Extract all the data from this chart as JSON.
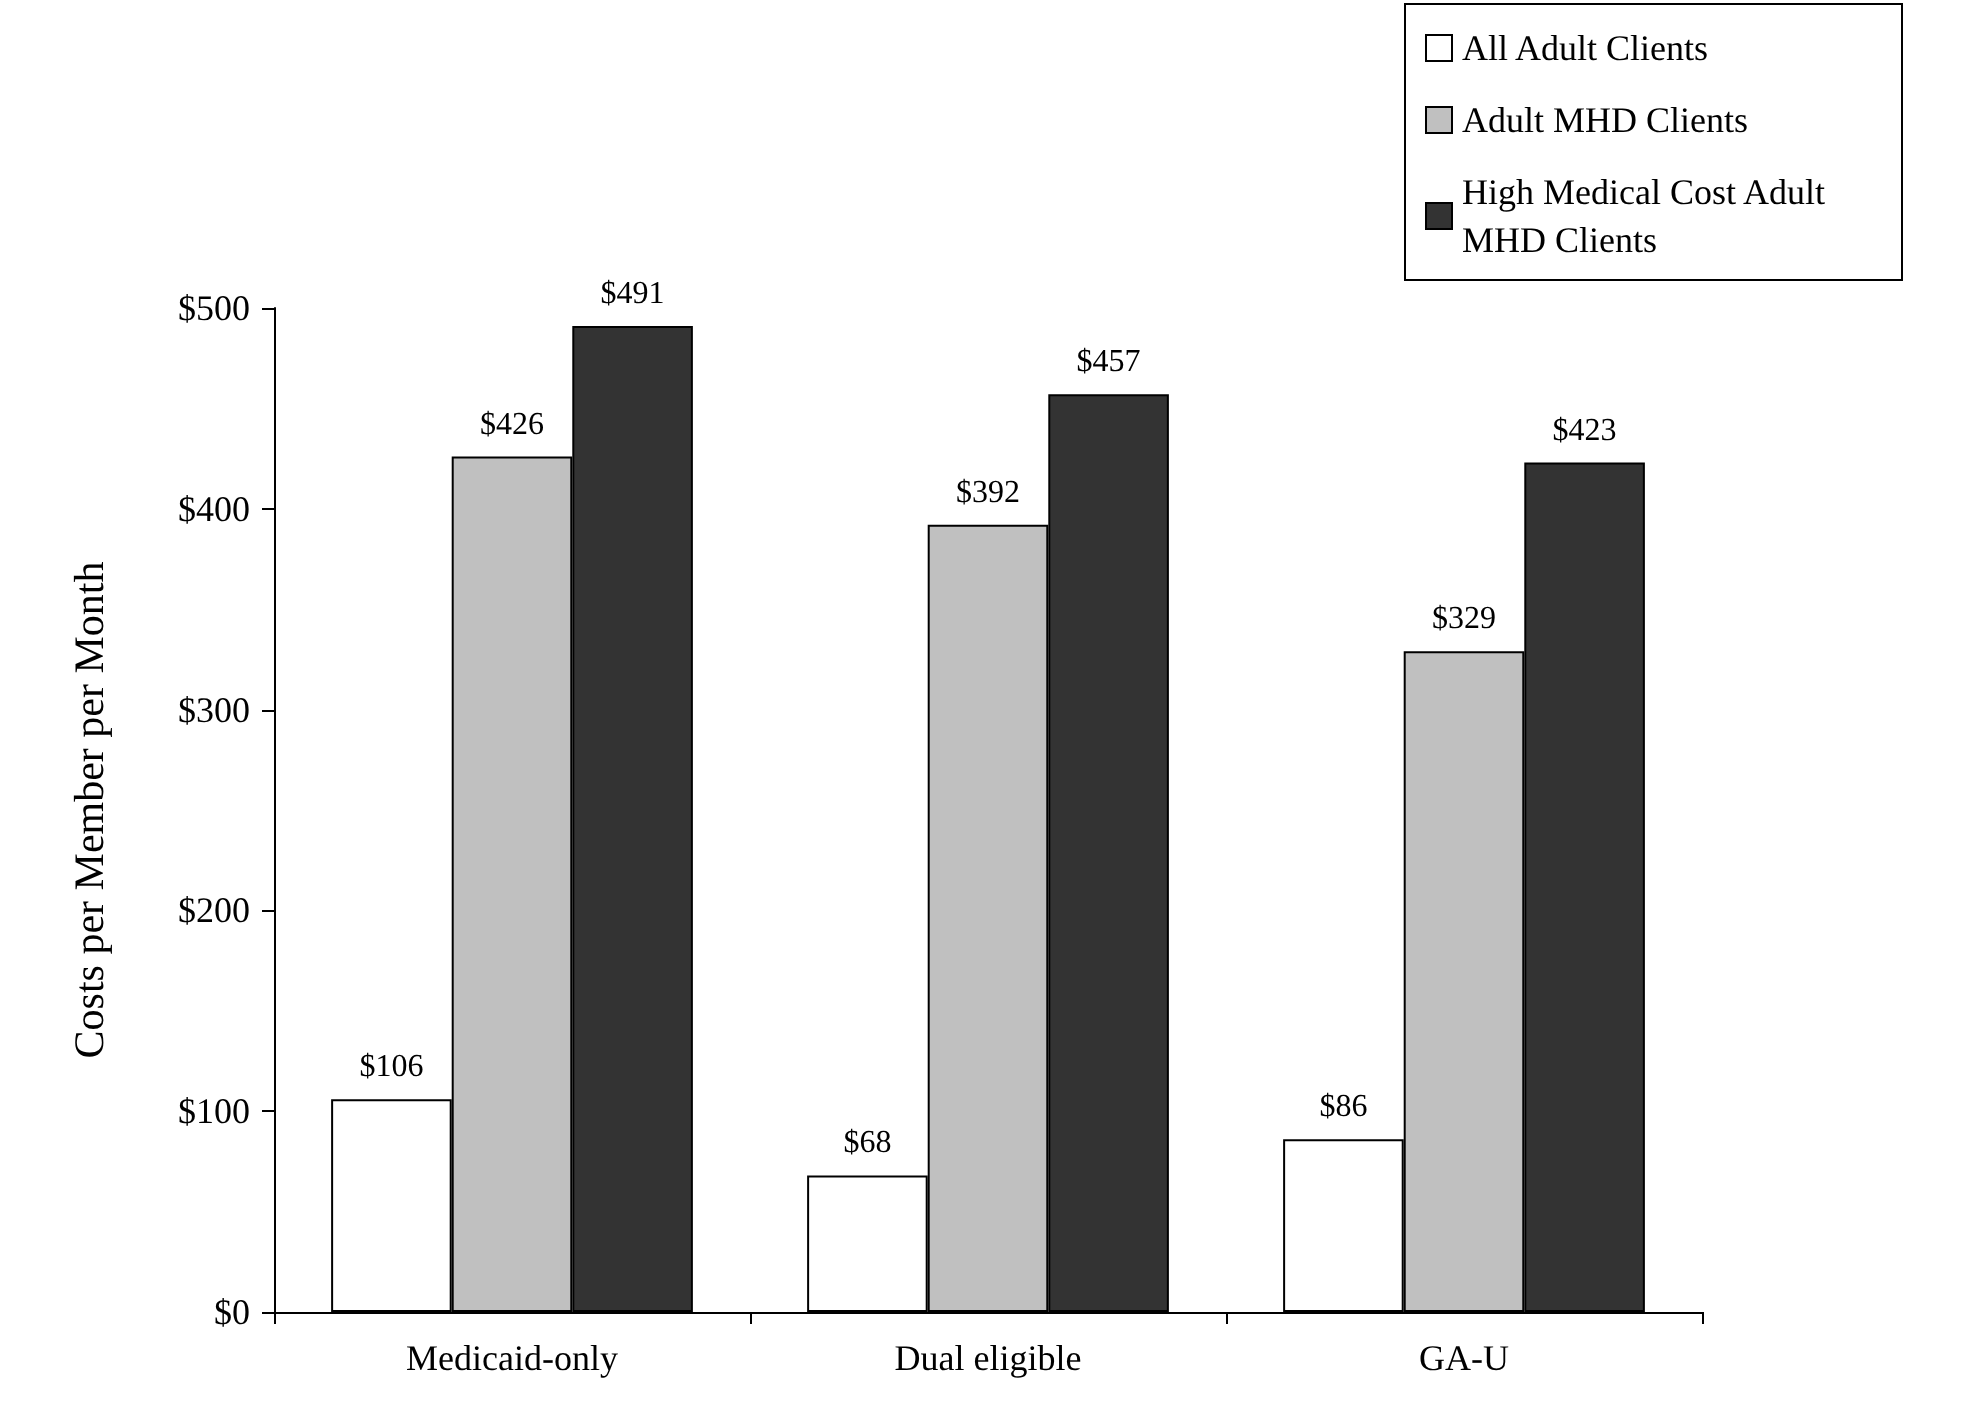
{
  "chart_data": {
    "type": "bar",
    "ylabel": "Costs per Member per Month",
    "categories": [
      "Medicaid-only",
      "Dual eligible",
      "GA-U"
    ],
    "series": [
      {
        "name": "All Adult Clients",
        "color": "#ffffff",
        "values": [
          106,
          68,
          86
        ],
        "value_labels": [
          "$106",
          "$68",
          "$86"
        ]
      },
      {
        "name": "Adult MHD Clients",
        "color": "#c0c0c0",
        "values": [
          426,
          392,
          329
        ],
        "value_labels": [
          "$426",
          "$392",
          "$329"
        ]
      },
      {
        "name": "High Medical Cost Adult MHD Clients",
        "color": "#333333",
        "values": [
          491,
          457,
          423
        ],
        "value_labels": [
          "$491",
          "$457",
          "$423"
        ]
      }
    ],
    "ylim": [
      0,
      500
    ],
    "yticks": [
      {
        "value": 0,
        "label": "$0"
      },
      {
        "value": 100,
        "label": "$100"
      },
      {
        "value": 200,
        "label": "$200"
      },
      {
        "value": 300,
        "label": "$300"
      },
      {
        "value": 400,
        "label": "$400"
      },
      {
        "value": 500,
        "label": "$500"
      }
    ],
    "grid": false,
    "legend": "top right"
  }
}
